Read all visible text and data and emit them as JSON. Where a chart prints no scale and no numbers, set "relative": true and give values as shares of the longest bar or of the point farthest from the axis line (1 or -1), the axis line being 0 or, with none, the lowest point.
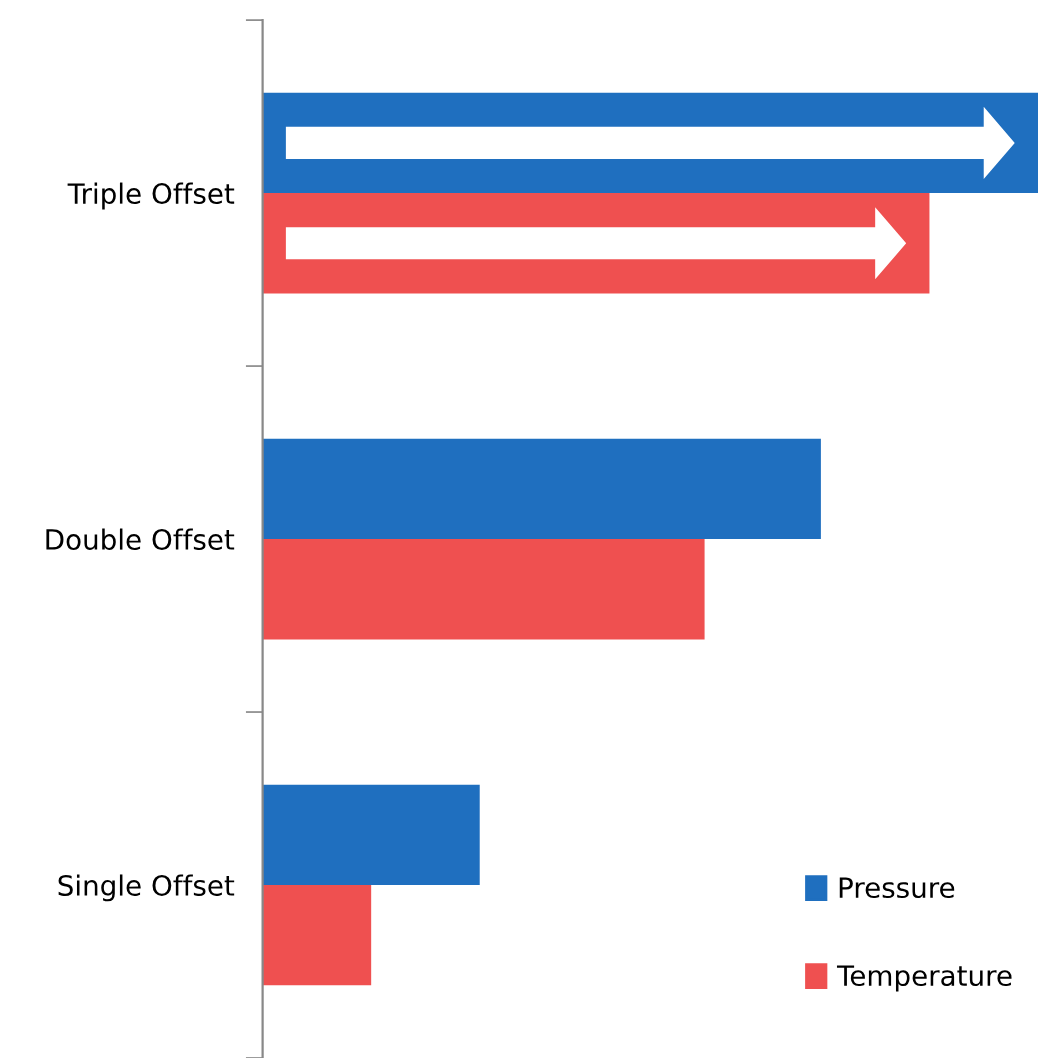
{
  "chart_data": {
    "type": "bar",
    "orientation": "horizontal",
    "relative": true,
    "categories": [
      "Triple Offset",
      "Double Offset",
      "Single Offset"
    ],
    "series": [
      {
        "name": "Pressure",
        "color": "#1f6fbf",
        "values": [
          1,
          0.72,
          0.28
        ]
      },
      {
        "name": "Temperature",
        "color": "#ef5050",
        "values": [
          0.86,
          0.57,
          0.14
        ]
      }
    ],
    "legend": "bottom right",
    "grid": false
  }
}
